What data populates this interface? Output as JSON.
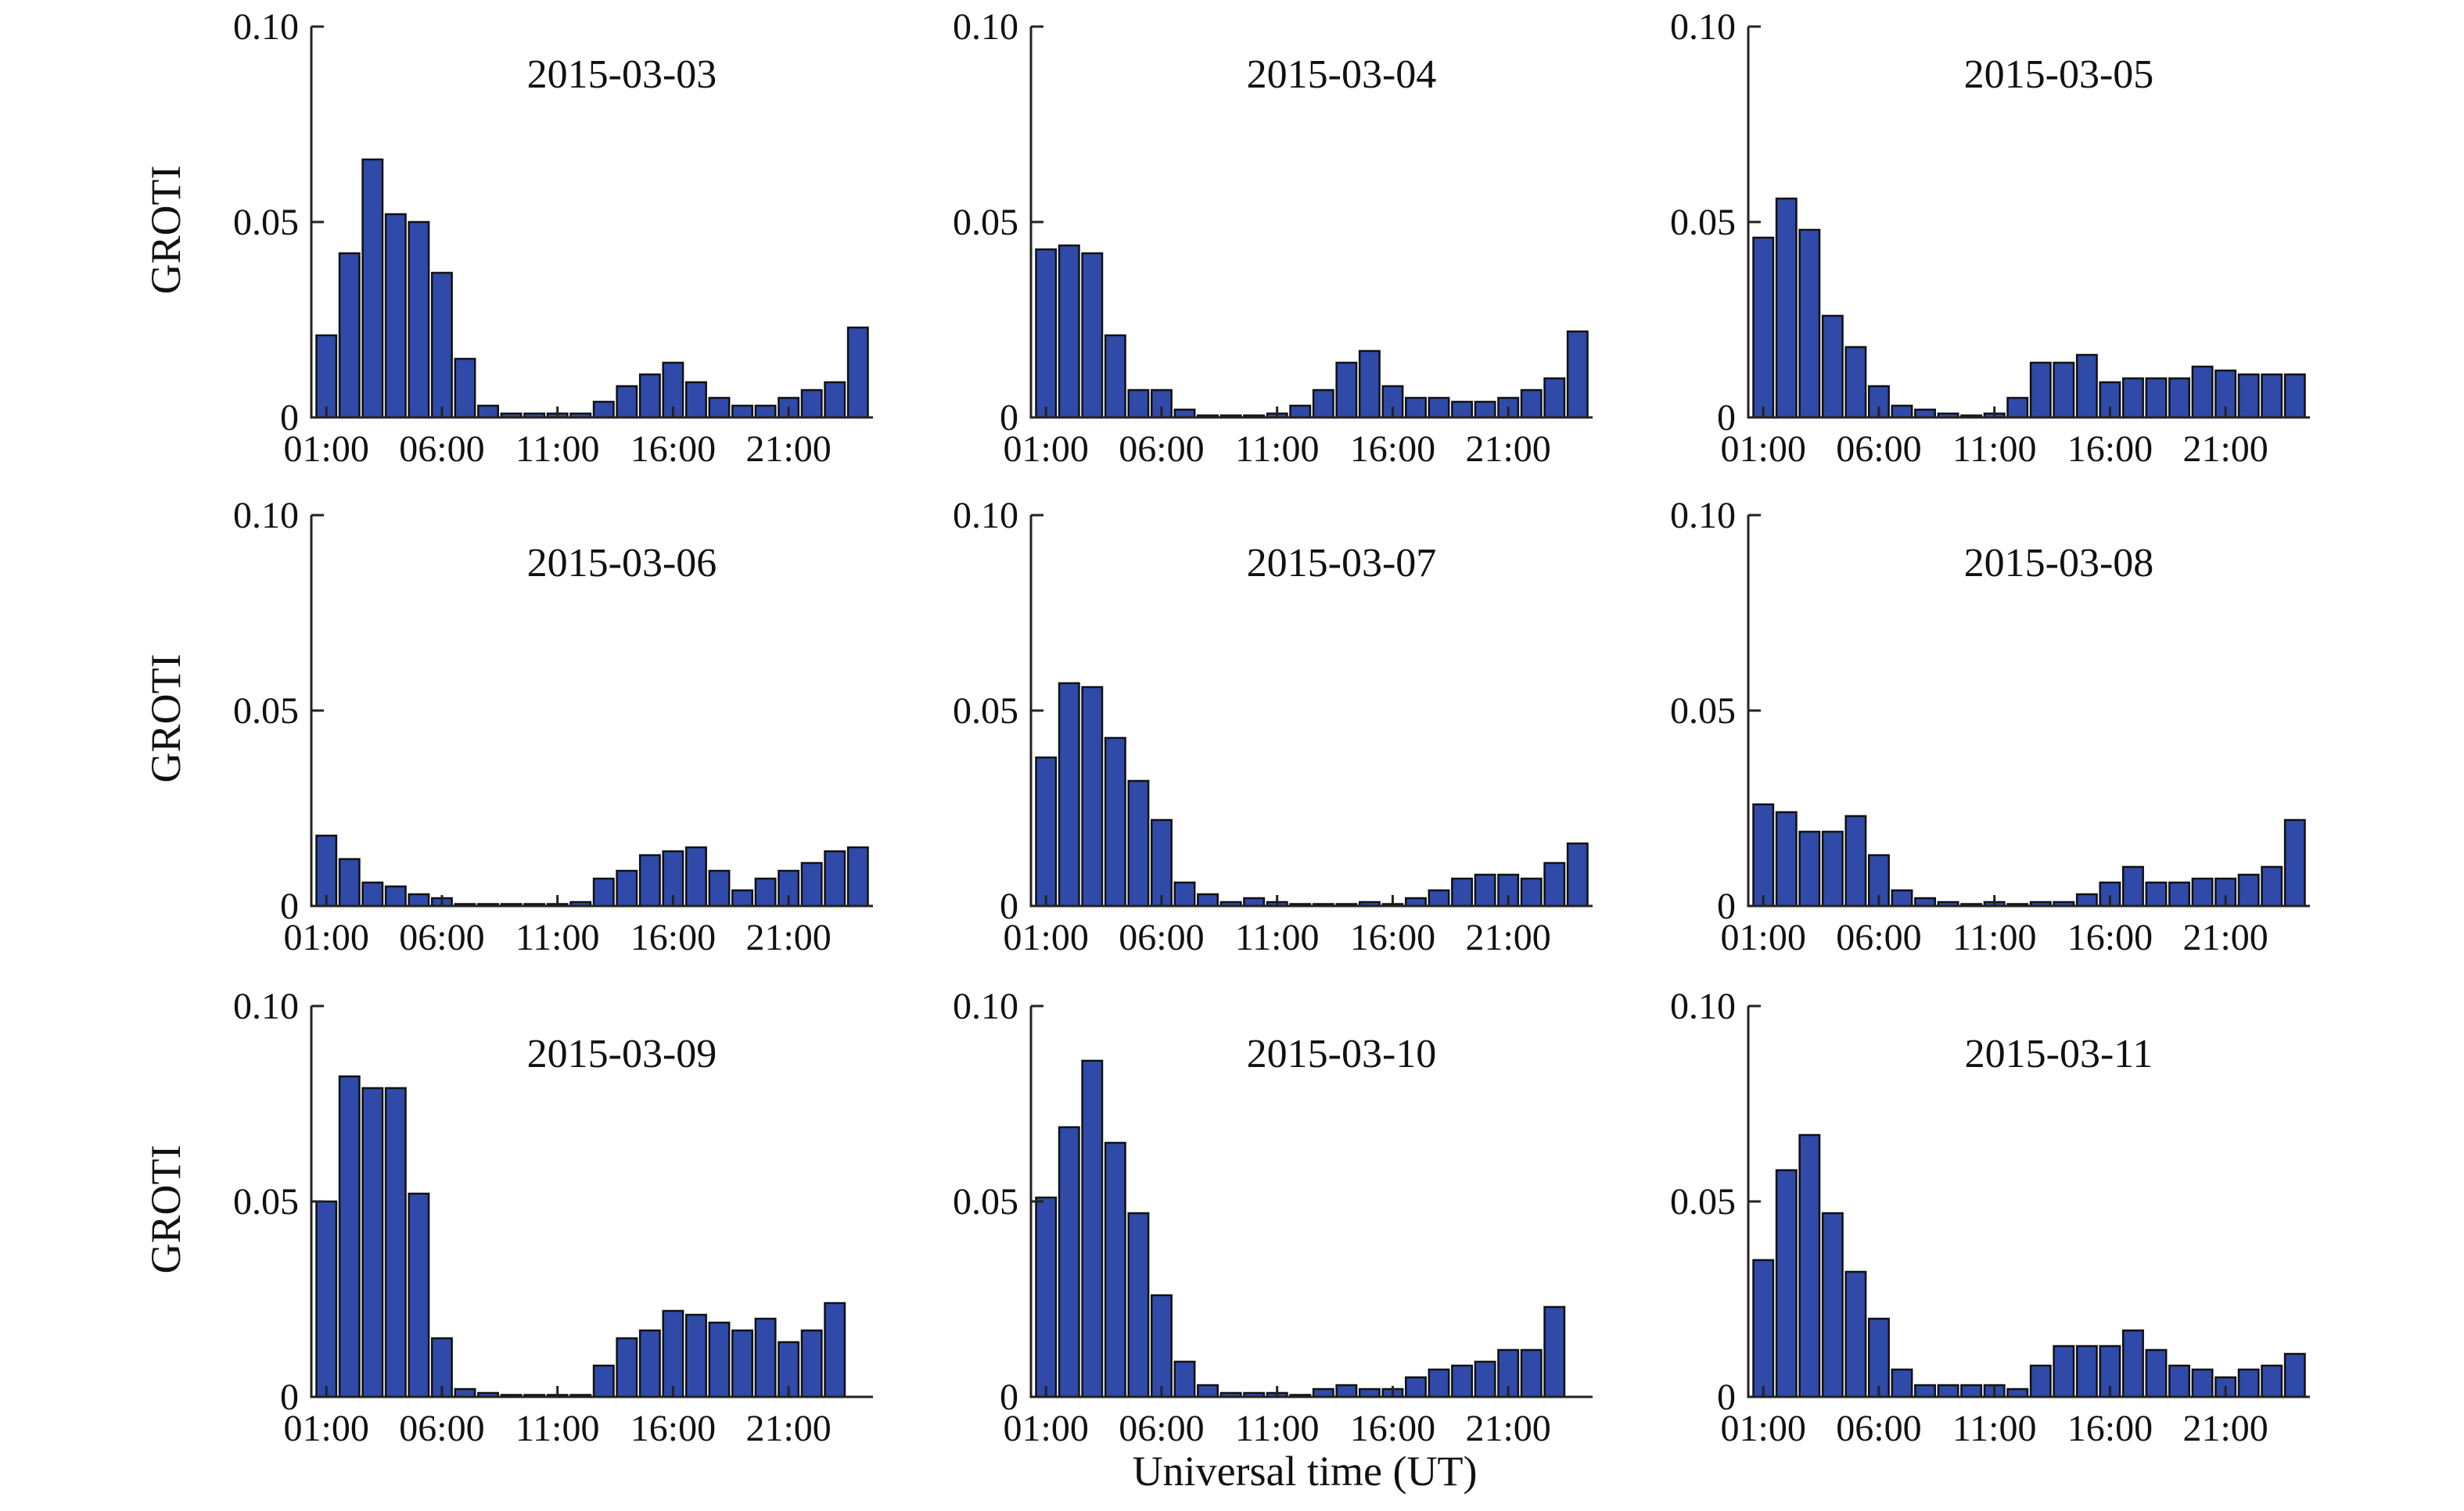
{
  "figure": {
    "ylabel": "GROTI",
    "xlabel": "Universal time (UT)",
    "bar_color": "#2f4aa8",
    "axis_color": "#222222"
  },
  "chart_data": [
    {
      "type": "bar",
      "title": "2015-03-03",
      "x": [
        1,
        2,
        3,
        4,
        5,
        6,
        7,
        8,
        9,
        10,
        11,
        12,
        13,
        14,
        15,
        16,
        17,
        18,
        19,
        20,
        21,
        22,
        23,
        24
      ],
      "xticks": [
        1,
        6,
        11,
        16,
        21
      ],
      "xticklabels": [
        "01:00",
        "06:00",
        "11:00",
        "16:00",
        "21:00"
      ],
      "ylim": [
        0,
        0.1
      ],
      "yticks": [
        0,
        0.05,
        0.1
      ],
      "yticklabels": [
        "0",
        "0.05",
        "0.10"
      ],
      "values": [
        0.021,
        0.042,
        0.066,
        0.052,
        0.05,
        0.037,
        0.015,
        0.003,
        0.001,
        0.001,
        0.001,
        0.001,
        0.004,
        0.008,
        0.011,
        0.014,
        0.009,
        0.005,
        0.003,
        0.003,
        0.005,
        0.007,
        0.009,
        0.023
      ]
    },
    {
      "type": "bar",
      "title": "2015-03-04",
      "x": [
        1,
        2,
        3,
        4,
        5,
        6,
        7,
        8,
        9,
        10,
        11,
        12,
        13,
        14,
        15,
        16,
        17,
        18,
        19,
        20,
        21,
        22,
        23,
        24
      ],
      "xticks": [
        1,
        6,
        11,
        16,
        21
      ],
      "xticklabels": [
        "01:00",
        "06:00",
        "11:00",
        "16:00",
        "21:00"
      ],
      "ylim": [
        0,
        0.1
      ],
      "yticks": [
        0,
        0.05,
        0.1
      ],
      "yticklabels": [
        "0",
        "0.05",
        "0.10"
      ],
      "values": [
        0.043,
        0.044,
        0.042,
        0.021,
        0.007,
        0.007,
        0.002,
        0.0005,
        0.0005,
        0.0005,
        0.001,
        0.003,
        0.007,
        0.014,
        0.017,
        0.008,
        0.005,
        0.005,
        0.004,
        0.004,
        0.005,
        0.007,
        0.01,
        0.022
      ]
    },
    {
      "type": "bar",
      "title": "2015-03-05",
      "x": [
        1,
        2,
        3,
        4,
        5,
        6,
        7,
        8,
        9,
        10,
        11,
        12,
        13,
        14,
        15,
        16,
        17,
        18,
        19,
        20,
        21,
        22,
        23,
        24
      ],
      "xticks": [
        1,
        6,
        11,
        16,
        21
      ],
      "xticklabels": [
        "01:00",
        "06:00",
        "11:00",
        "16:00",
        "21:00"
      ],
      "ylim": [
        0,
        0.1
      ],
      "yticks": [
        0,
        0.05,
        0.1
      ],
      "yticklabels": [
        "0",
        "0.05",
        "0.10"
      ],
      "values": [
        0.046,
        0.056,
        0.048,
        0.026,
        0.018,
        0.008,
        0.003,
        0.002,
        0.001,
        0.0005,
        0.001,
        0.005,
        0.014,
        0.014,
        0.016,
        0.009,
        0.01,
        0.01,
        0.01,
        0.013,
        0.012,
        0.011,
        0.011,
        0.011
      ]
    },
    {
      "type": "bar",
      "title": "2015-03-06",
      "x": [
        1,
        2,
        3,
        4,
        5,
        6,
        7,
        8,
        9,
        10,
        11,
        12,
        13,
        14,
        15,
        16,
        17,
        18,
        19,
        20,
        21,
        22,
        23,
        24
      ],
      "xticks": [
        1,
        6,
        11,
        16,
        21
      ],
      "xticklabels": [
        "01:00",
        "06:00",
        "11:00",
        "16:00",
        "21:00"
      ],
      "ylim": [
        0,
        0.1
      ],
      "yticks": [
        0,
        0.05,
        0.1
      ],
      "yticklabels": [
        "0",
        "0.05",
        "0.10"
      ],
      "values": [
        0.018,
        0.012,
        0.006,
        0.005,
        0.003,
        0.002,
        0.0005,
        0.0005,
        0.0005,
        0.0005,
        0.0005,
        0.001,
        0.007,
        0.009,
        0.013,
        0.014,
        0.015,
        0.009,
        0.004,
        0.007,
        0.009,
        0.011,
        0.014,
        0.015
      ]
    },
    {
      "type": "bar",
      "title": "2015-03-07",
      "x": [
        1,
        2,
        3,
        4,
        5,
        6,
        7,
        8,
        9,
        10,
        11,
        12,
        13,
        14,
        15,
        16,
        17,
        18,
        19,
        20,
        21,
        22,
        23,
        24
      ],
      "xticks": [
        1,
        6,
        11,
        16,
        21
      ],
      "xticklabels": [
        "01:00",
        "06:00",
        "11:00",
        "16:00",
        "21:00"
      ],
      "ylim": [
        0,
        0.1
      ],
      "yticks": [
        0,
        0.05,
        0.1
      ],
      "yticklabels": [
        "0",
        "0.05",
        "0.10"
      ],
      "values": [
        0.038,
        0.057,
        0.056,
        0.043,
        0.032,
        0.022,
        0.006,
        0.003,
        0.001,
        0.002,
        0.001,
        0.0005,
        0.0005,
        0.0005,
        0.001,
        0.0005,
        0.002,
        0.004,
        0.007,
        0.008,
        0.008,
        0.007,
        0.011,
        0.016
      ]
    },
    {
      "type": "bar",
      "title": "2015-03-08",
      "x": [
        1,
        2,
        3,
        4,
        5,
        6,
        7,
        8,
        9,
        10,
        11,
        12,
        13,
        14,
        15,
        16,
        17,
        18,
        19,
        20,
        21,
        22,
        23,
        24
      ],
      "xticks": [
        1,
        6,
        11,
        16,
        21
      ],
      "xticklabels": [
        "01:00",
        "06:00",
        "11:00",
        "16:00",
        "21:00"
      ],
      "ylim": [
        0,
        0.1
      ],
      "yticks": [
        0,
        0.05,
        0.1
      ],
      "yticklabels": [
        "0",
        "0.05",
        "0.10"
      ],
      "values": [
        0.026,
        0.024,
        0.019,
        0.019,
        0.023,
        0.013,
        0.004,
        0.002,
        0.001,
        0.0005,
        0.001,
        0.0005,
        0.001,
        0.001,
        0.003,
        0.006,
        0.01,
        0.006,
        0.006,
        0.007,
        0.007,
        0.008,
        0.01,
        0.022
      ]
    },
    {
      "type": "bar",
      "title": "2015-03-09",
      "x": [
        1,
        2,
        3,
        4,
        5,
        6,
        7,
        8,
        9,
        10,
        11,
        12,
        13,
        14,
        15,
        16,
        17,
        18,
        19,
        20,
        21,
        22,
        23,
        24
      ],
      "xticks": [
        1,
        6,
        11,
        16,
        21
      ],
      "xticklabels": [
        "01:00",
        "06:00",
        "11:00",
        "16:00",
        "21:00"
      ],
      "ylim": [
        0,
        0.1
      ],
      "yticks": [
        0,
        0.05,
        0.1
      ],
      "yticklabels": [
        "0",
        "0.05",
        "0.10"
      ],
      "values": [
        0.05,
        0.082,
        0.079,
        0.079,
        0.052,
        0.015,
        0.002,
        0.001,
        0.0005,
        0.0005,
        0.0005,
        0.0005,
        0.008,
        0.015,
        0.017,
        0.022,
        0.021,
        0.019,
        0.017,
        0.02,
        0.014,
        0.017,
        0.024,
        0.0
      ]
    },
    {
      "type": "bar",
      "title": "2015-03-10",
      "x": [
        1,
        2,
        3,
        4,
        5,
        6,
        7,
        8,
        9,
        10,
        11,
        12,
        13,
        14,
        15,
        16,
        17,
        18,
        19,
        20,
        21,
        22,
        23,
        24
      ],
      "xticks": [
        1,
        6,
        11,
        16,
        21
      ],
      "xticklabels": [
        "01:00",
        "06:00",
        "11:00",
        "16:00",
        "21:00"
      ],
      "ylim": [
        0,
        0.1
      ],
      "yticks": [
        0,
        0.05,
        0.1
      ],
      "yticklabels": [
        "0",
        "0.05",
        "0.10"
      ],
      "values": [
        0.051,
        0.069,
        0.086,
        0.065,
        0.047,
        0.026,
        0.009,
        0.003,
        0.001,
        0.001,
        0.001,
        0.0005,
        0.002,
        0.003,
        0.002,
        0.002,
        0.005,
        0.007,
        0.008,
        0.009,
        0.012,
        0.012,
        0.023,
        0.0
      ]
    },
    {
      "type": "bar",
      "title": "2015-03-11",
      "x": [
        1,
        2,
        3,
        4,
        5,
        6,
        7,
        8,
        9,
        10,
        11,
        12,
        13,
        14,
        15,
        16,
        17,
        18,
        19,
        20,
        21,
        22,
        23,
        24
      ],
      "xticks": [
        1,
        6,
        11,
        16,
        21
      ],
      "xticklabels": [
        "01:00",
        "06:00",
        "11:00",
        "16:00",
        "21:00"
      ],
      "ylim": [
        0,
        0.1
      ],
      "yticks": [
        0,
        0.05,
        0.1
      ],
      "yticklabels": [
        "0",
        "0.05",
        "0.10"
      ],
      "values": [
        0.035,
        0.058,
        0.067,
        0.047,
        0.032,
        0.02,
        0.007,
        0.003,
        0.003,
        0.003,
        0.003,
        0.002,
        0.008,
        0.013,
        0.013,
        0.013,
        0.017,
        0.012,
        0.008,
        0.007,
        0.005,
        0.007,
        0.008,
        0.011
      ]
    }
  ]
}
